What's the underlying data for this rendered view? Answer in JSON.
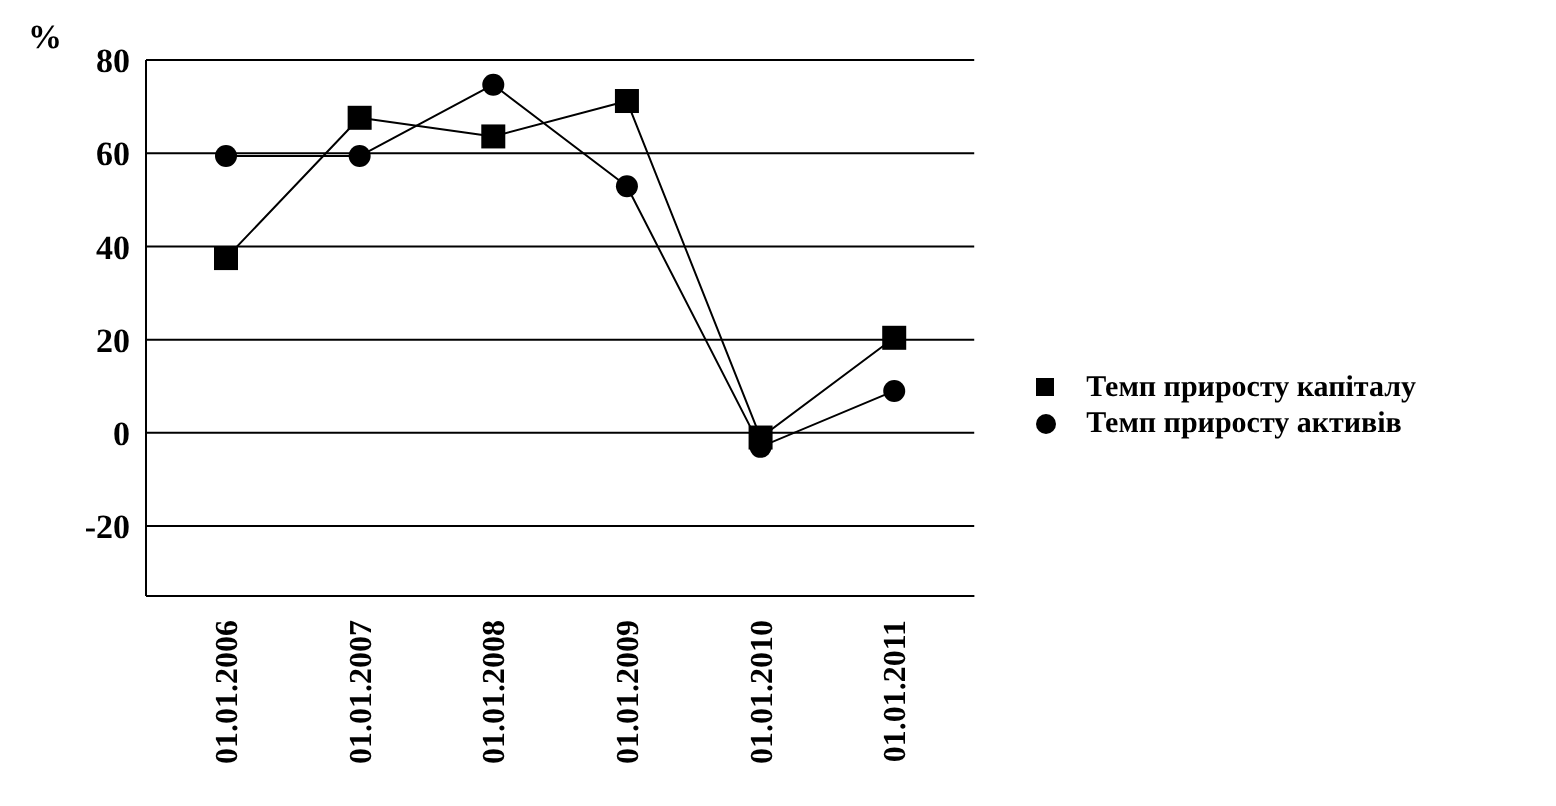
{
  "chart_data": {
    "type": "line",
    "ylabel": "%",
    "categories": [
      "01.01.2006",
      "01.01.2007",
      "01.01.2008",
      "01.01.2009",
      "01.01.2010",
      "01.01.2011"
    ],
    "series": [
      {
        "name": "Темп приросту капіталу",
        "color": "#000000",
        "marker": "square",
        "values": [
          37.5,
          67.6,
          63.6,
          71.2,
          -1,
          20.4
        ]
      },
      {
        "name": "Темп приросту активів",
        "color": "#000000",
        "marker": "circle",
        "values": [
          59.4,
          59.4,
          74.7,
          52.9,
          -3,
          9
        ]
      }
    ],
    "ylim": [
      -35,
      80
    ],
    "yticks": [
      -20,
      0,
      20,
      40,
      60,
      80
    ],
    "grid": "y",
    "legend": "right",
    "line_style": "solid"
  }
}
